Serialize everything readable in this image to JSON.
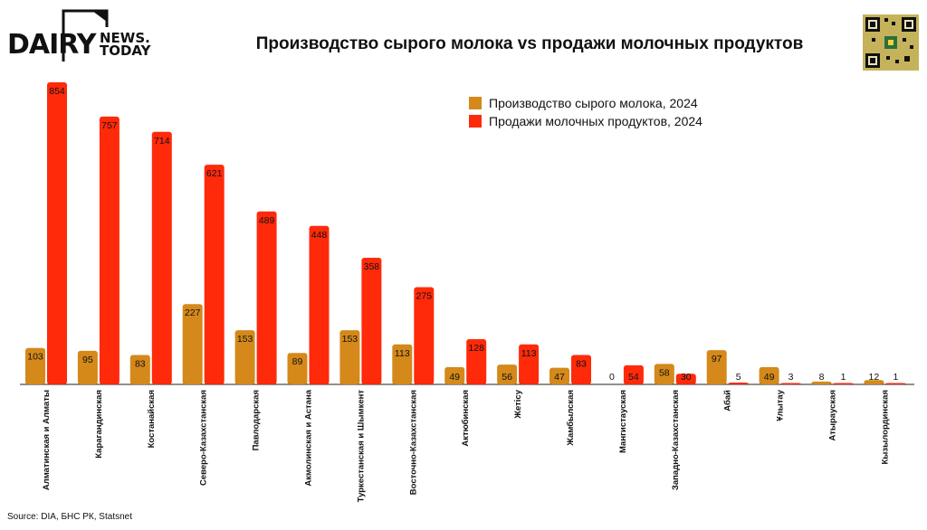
{
  "header": {
    "logo_main": "DAIRY",
    "logo_sub1": "NEWS.",
    "logo_sub2": "TODAY",
    "title": "Производство сырого молока vs продажи молочных продуктов"
  },
  "source": "Source: DIA, БНС РК, Statsnet",
  "colors": {
    "production": "#D4891A",
    "sales": "#FF2A0A"
  },
  "chart_data": {
    "type": "bar",
    "title": "Производство сырого молока vs продажи молочных продуктов",
    "legend_position": "top-right",
    "grid": false,
    "categories": [
      "Алматинская и Алматы",
      "Карагандинская",
      "Костанайская",
      "Северо-Казахстанская",
      "Павлодарская",
      "Акмолинская и Астана",
      "Туркестанская и Шымкент",
      "Восточно-Казахстанская",
      "Актюбинская",
      "Жетісу",
      "Жамбылская",
      "Мангистауская",
      "Западно-Казахстанская",
      "Абай",
      "Ұлытау",
      "Атырауская",
      "Кызылординская"
    ],
    "series": [
      {
        "name": "Производство сырого молока, 2024",
        "values": [
          103,
          95,
          83,
          227,
          153,
          89,
          153,
          113,
          49,
          56,
          47,
          0,
          58,
          97,
          49,
          8,
          12
        ]
      },
      {
        "name": "Продажи молочных продуктов, 2024",
        "values": [
          854,
          757,
          714,
          621,
          489,
          448,
          358,
          275,
          128,
          113,
          83,
          54,
          30,
          5,
          3,
          1,
          1
        ]
      }
    ],
    "ylim": [
      0,
      854
    ]
  }
}
